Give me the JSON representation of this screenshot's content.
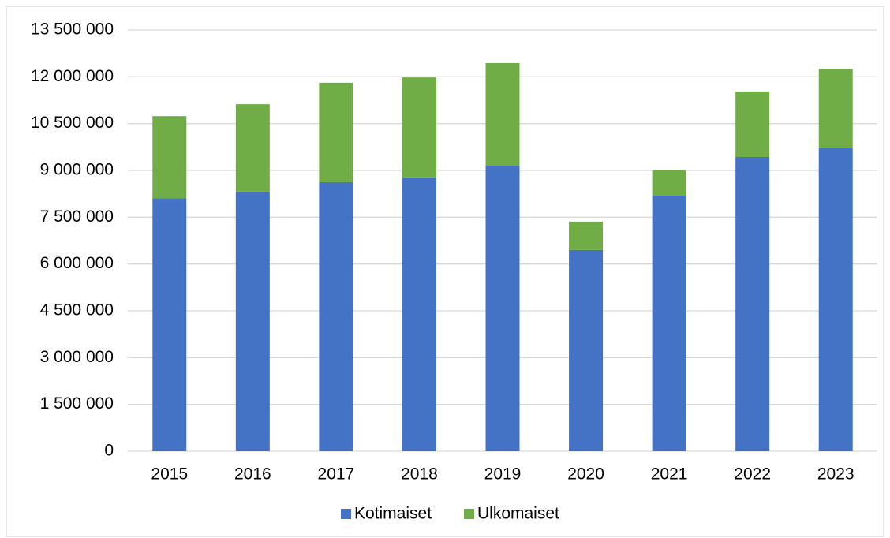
{
  "chart_data": {
    "type": "stacked_bar",
    "categories": [
      "2015",
      "2016",
      "2017",
      "2018",
      "2019",
      "2020",
      "2021",
      "2022",
      "2023"
    ],
    "series": [
      {
        "name": "Kotimaiset",
        "color": "#4472c4",
        "values": [
          8110000,
          8320000,
          8620000,
          8750000,
          9150000,
          6450000,
          8190000,
          9430000,
          9710000
        ]
      },
      {
        "name": "Ulkomaiset",
        "color": "#70ad47",
        "values": [
          2630000,
          2800000,
          3190000,
          3230000,
          3290000,
          910000,
          810000,
          2100000,
          2550000
        ]
      }
    ],
    "ylim": [
      0,
      13500000
    ],
    "yticks": [
      0,
      {
        "value": 1500000,
        "label": "1 500 000"
      },
      {
        "value": 3000000,
        "label": "3 000 000"
      },
      {
        "value": 4500000,
        "label": "4 500 000"
      },
      {
        "value": 6000000,
        "label": "6 000 000"
      },
      {
        "value": 7500000,
        "label": "7 500 000"
      },
      {
        "value": 9000000,
        "label": "9 000 000"
      },
      {
        "value": 10500000,
        "label": "10 500 000"
      },
      {
        "value": 12000000,
        "label": "12 000 000"
      },
      {
        "value": 13500000,
        "label": "13 500 000"
      }
    ],
    "grid": true,
    "legend": "bottom"
  }
}
